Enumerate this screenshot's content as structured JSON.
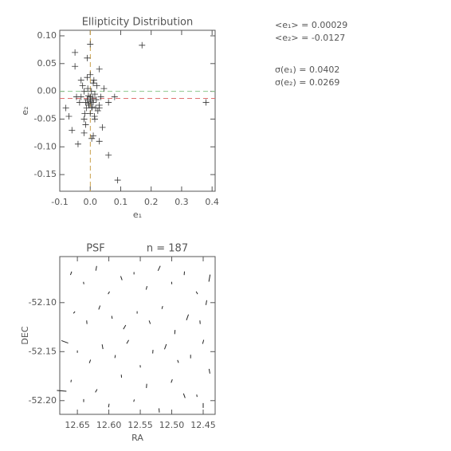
{
  "chart_data": [
    {
      "type": "scatter",
      "title": "Ellipticity Distribution",
      "xlabel": "e₁",
      "ylabel": "e₂",
      "color": "#333333",
      "marker": "plus",
      "xlim": [
        -0.1,
        0.41
      ],
      "ylim": [
        -0.18,
        0.11
      ],
      "xticks": [
        -0.1,
        {
          "value": 0,
          "label": "0.0"
        },
        0.1,
        0.2,
        0.3,
        0.4
      ],
      "yticks": [
        {
          "value": 0.1,
          "label": "0.10"
        },
        0.05,
        {
          "value": 0,
          "label": "0.00"
        },
        {
          "value": -0.05,
          "label": "-0.05"
        },
        {
          "value": -0.1,
          "label": "-0.10"
        },
        {
          "value": -0.15,
          "label": "-0.15"
        }
      ],
      "vlines": [
        {
          "value": 0.00029,
          "color": "#c9a04a"
        }
      ],
      "hlines": [
        {
          "value": 0,
          "color": "#8cc88c"
        },
        {
          "value": -0.0127,
          "color": "#e07070"
        }
      ],
      "annotations": [
        "<e₁> = 0.00029",
        "<e₂> = -0.0127",
        "σ(e₁) = 0.0402",
        "σ(e₂) = 0.0269"
      ],
      "x": [
        -0.03,
        -0.02,
        -0.015,
        -0.01,
        -0.005,
        0,
        0.005,
        0.01,
        0.015,
        0.02,
        0.025,
        0.03,
        -0.025,
        -0.018,
        -0.008,
        0.002,
        0.008,
        0.012,
        0.018,
        -0.012,
        -0.004,
        0.004,
        0.014,
        -0.02,
        0.022,
        -0.035,
        0.035,
        0,
        -0.006,
        0.006,
        -0.01,
        0.01,
        0,
        -0.015,
        0.015,
        -0.03,
        0.03,
        -0.045,
        0.045,
        0,
        -0.05,
        0.17,
        0.38,
        0.09,
        0.06,
        0,
        -0.01,
        0.03,
        -0.06,
        -0.04,
        -0.05,
        0.01,
        0.005,
        0.04,
        -0.08,
        -0.07,
        0.06,
        0.08,
        -0.02,
        0.03
      ],
      "values": [
        -0.01,
        0,
        -0.02,
        -0.015,
        -0.025,
        -0.01,
        -0.03,
        -0.02,
        -0.005,
        -0.015,
        -0.035,
        -0.025,
        0.01,
        -0.04,
        0.005,
        -0.018,
        -0.012,
        0.02,
        -0.03,
        -0.03,
        -0.022,
        0,
        -0.045,
        -0.05,
        0.01,
        -0.02,
        -0.01,
        -0.04,
        -0.008,
        -0.028,
        0.025,
        0.015,
        0.03,
        -0.06,
        -0.05,
        0.02,
        -0.03,
        -0.01,
        0.005,
        -0.015,
        0.07,
        0.083,
        -0.02,
        -0.16,
        -0.115,
        0.085,
        0.06,
        0.04,
        -0.07,
        -0.095,
        0.045,
        -0.08,
        -0.085,
        -0.065,
        -0.03,
        -0.045,
        -0.02,
        -0.01,
        -0.075,
        -0.09
      ]
    },
    {
      "type": "whisker",
      "title": "PSF",
      "subtitle": "n = 187",
      "xlabel": "RA",
      "ylabel": "DEC",
      "color": "#222222",
      "xlim": [
        12.678,
        12.431
      ],
      "ylim": [
        -52.214,
        -52.053
      ],
      "xticks": [
        12.65,
        {
          "value": 12.6,
          "label": "12.60"
        },
        12.55,
        {
          "value": 12.5,
          "label": "12.50"
        },
        12.45
      ],
      "yticks": [
        {
          "value": -52.1,
          "label": "-52.10"
        },
        -52.15,
        {
          "value": -52.2,
          "label": "-52.20"
        }
      ],
      "x": [
        12.66,
        12.64,
        12.62,
        12.6,
        12.58,
        12.56,
        12.54,
        12.52,
        12.5,
        12.48,
        12.46,
        12.44,
        12.655,
        12.635,
        12.615,
        12.595,
        12.575,
        12.555,
        12.535,
        12.515,
        12.495,
        12.475,
        12.455,
        12.445,
        12.67,
        12.65,
        12.63,
        12.61,
        12.59,
        12.57,
        12.55,
        12.53,
        12.51,
        12.49,
        12.47,
        12.45,
        12.44,
        12.66,
        12.62,
        12.58,
        12.54,
        12.5,
        12.46,
        12.64,
        12.6,
        12.56,
        12.52,
        12.48,
        12.675,
        12.45
      ],
      "values": [
        -52.07,
        -52.08,
        -52.065,
        -52.09,
        -52.075,
        -52.07,
        -52.085,
        -52.065,
        -52.08,
        -52.07,
        -52.09,
        -52.075,
        -52.11,
        -52.12,
        -52.105,
        -52.115,
        -52.125,
        -52.11,
        -52.12,
        -52.105,
        -52.13,
        -52.115,
        -52.12,
        -52.1,
        -52.14,
        -52.15,
        -52.16,
        -52.145,
        -52.155,
        -52.14,
        -52.165,
        -52.15,
        -52.145,
        -52.16,
        -52.155,
        -52.14,
        -52.17,
        -52.18,
        -52.19,
        -52.175,
        -52.185,
        -52.18,
        -52.195,
        -52.2,
        -52.205,
        -52.2,
        -52.21,
        -52.195,
        -52.19,
        -52.205
      ],
      "length": [
        0.03,
        0.02,
        0.04,
        0.025,
        0.035,
        0.02,
        0.03,
        0.045,
        0.02,
        0.03,
        0.025,
        0.06,
        0.02,
        0.03,
        0.035,
        0.025,
        0.04,
        0.02,
        0.03,
        0.025,
        0.035,
        0.05,
        0.03,
        0.04,
        0.06,
        0.02,
        0.03,
        0.04,
        0.025,
        0.035,
        0.02,
        0.03,
        0.045,
        0.025,
        0.03,
        0.035,
        0.04,
        0.02,
        0.03,
        0.025,
        0.035,
        0.03,
        0.02,
        0.025,
        0.03,
        0.02,
        0.035,
        0.04,
        0.08,
        0.04
      ],
      "angle": [
        70,
        100,
        80,
        60,
        110,
        90,
        75,
        65,
        95,
        85,
        120,
        80,
        50,
        95,
        70,
        100,
        60,
        90,
        110,
        75,
        85,
        70,
        95,
        80,
        160,
        90,
        70,
        100,
        80,
        60,
        95,
        85,
        70,
        110,
        90,
        75,
        100,
        80,
        60,
        95,
        85,
        70,
        100,
        90,
        80,
        75,
        95,
        110,
        175,
        90
      ]
    }
  ]
}
